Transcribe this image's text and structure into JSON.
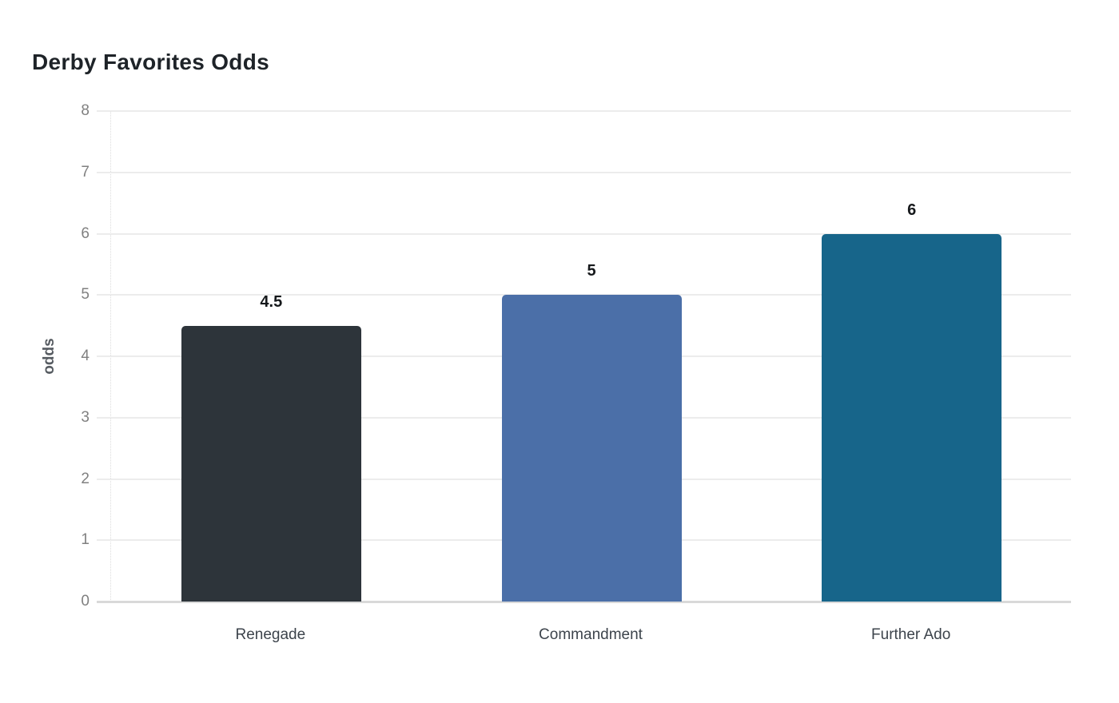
{
  "header": {
    "title": "Derby Favorites Odds"
  },
  "chart_data": {
    "type": "bar",
    "title": "Derby Favorites Odds",
    "categories": [
      "Renegade",
      "Commandment",
      "Further Ado"
    ],
    "values": [
      4.5,
      5,
      6
    ],
    "value_labels": [
      "4.5",
      "5",
      "6"
    ],
    "bar_colors": [
      "#2d343a",
      "#4b6fa8",
      "#17658a"
    ],
    "xlabel": "",
    "ylabel": "odds",
    "ylim": [
      0,
      8
    ],
    "yticks": [
      0,
      1,
      2,
      3,
      4,
      5,
      6,
      7,
      8
    ],
    "grid": "horizontal",
    "legend": "none",
    "gridline_color": "#ececec",
    "baseline_color": "#d9d9d9",
    "axis_line_color": "#dcdcdc",
    "tick_label_color": "#808080",
    "category_label_color": "#3d444c",
    "value_label_color": "#15181b",
    "background_color": "#ffffff"
  }
}
